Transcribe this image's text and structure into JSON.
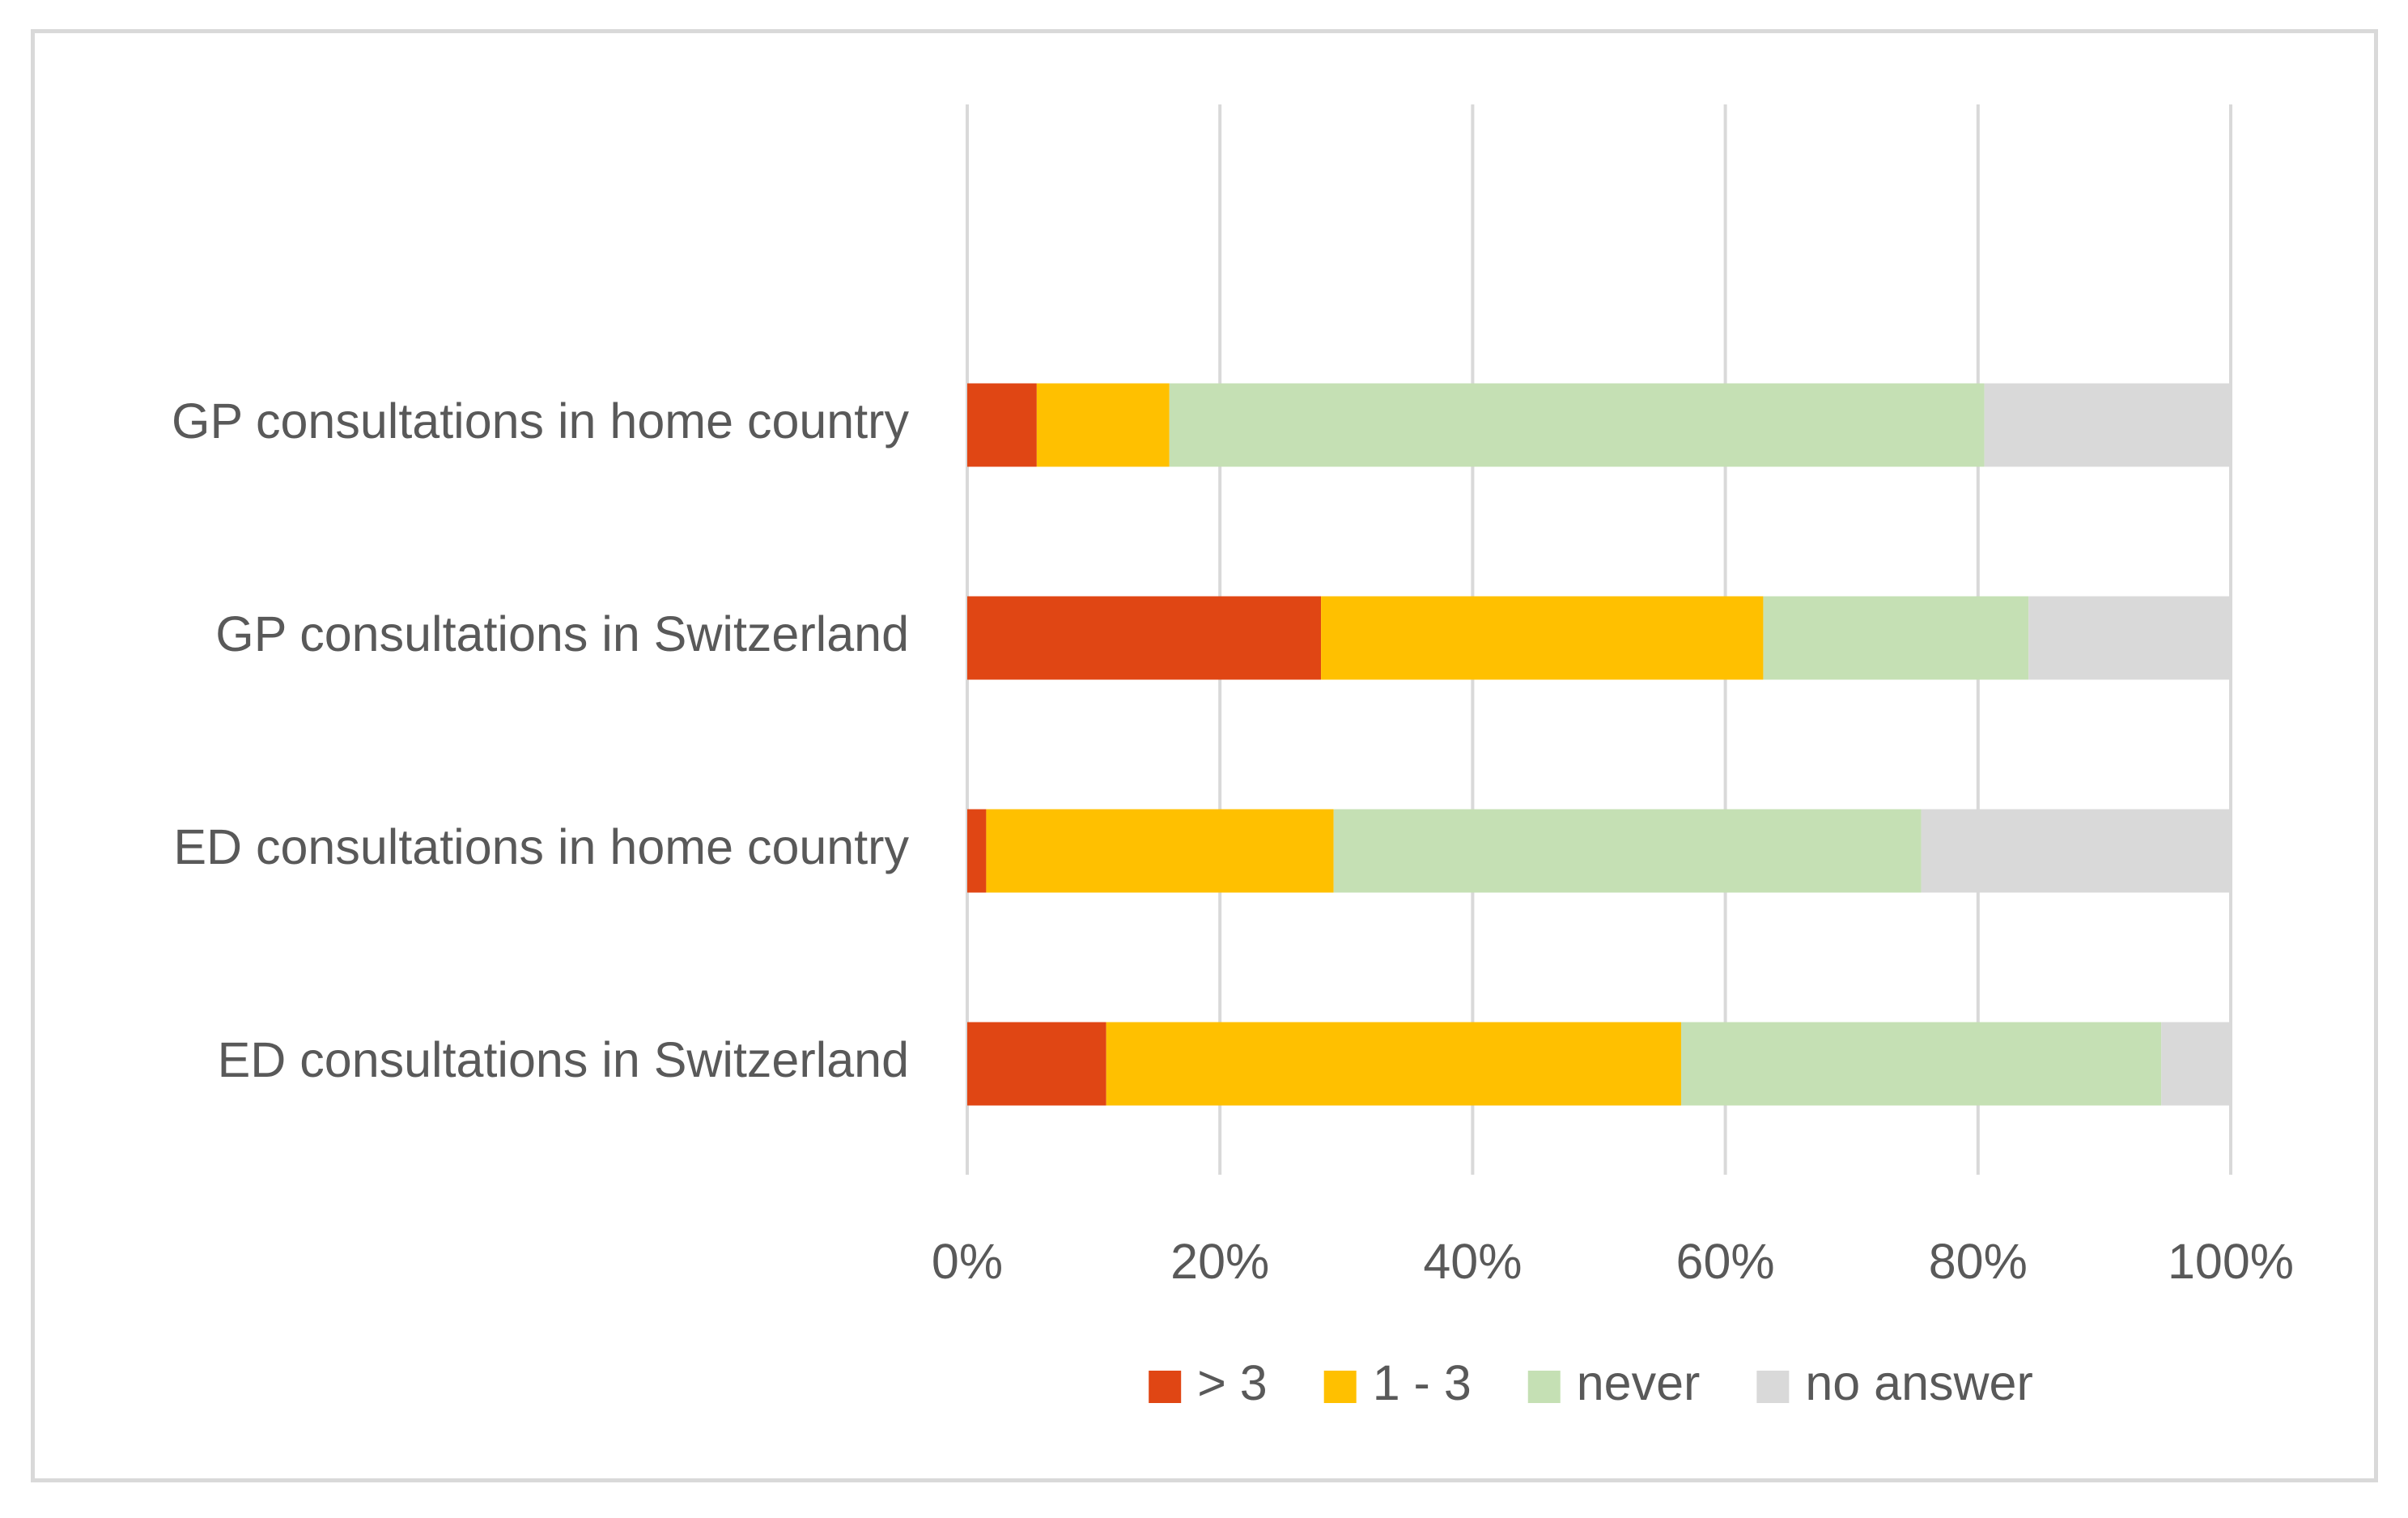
{
  "chart_data": {
    "type": "bar",
    "orientation": "horizontal",
    "stacked": "percent",
    "categories": [
      "GP consultations in home country",
      "GP consultations in Switzerland",
      "ED consultations in home country",
      "ED consultations in Switzerland"
    ],
    "series": [
      {
        "name": "> 3",
        "color": "#e04614",
        "values": [
          5.5,
          28,
          1.5,
          11
        ]
      },
      {
        "name": "1 - 3",
        "color": "#ffc000",
        "values": [
          10.5,
          35,
          27.5,
          45.5
        ]
      },
      {
        "name": "never",
        "color": "#c5e0b4",
        "values": [
          64.5,
          21,
          46.5,
          38
        ]
      },
      {
        "name": "no answer",
        "color": "#d9d9d9",
        "values": [
          19.5,
          16,
          24.5,
          5.5
        ]
      }
    ],
    "xlim": [
      0,
      100
    ],
    "x_ticks": [
      "0%",
      "20%",
      "40%",
      "60%",
      "80%",
      "100%"
    ],
    "grid": "vertical",
    "legend_position": "bottom",
    "title": "",
    "xlabel": "",
    "ylabel": ""
  }
}
